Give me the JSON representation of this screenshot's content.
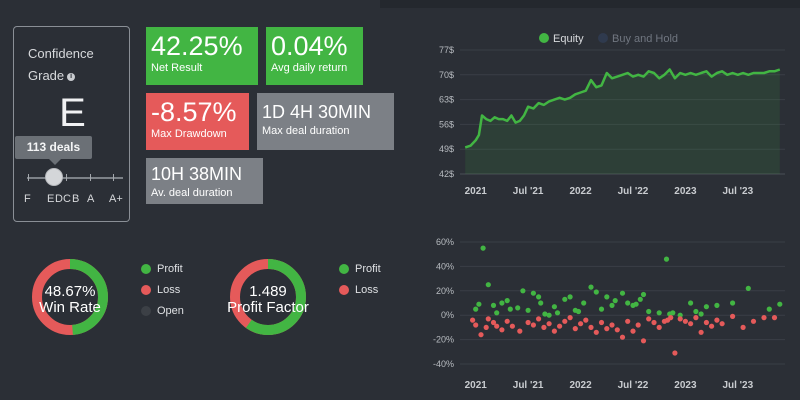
{
  "confidence": {
    "title": "Confidence Grade",
    "info_icon": "info-icon",
    "grade": "E",
    "tooltip": "113 deals",
    "scale": [
      "F",
      "E",
      "D",
      "C",
      "B",
      "A",
      "A+"
    ],
    "level": "E"
  },
  "tiles": {
    "net_result": {
      "value": "42.25%",
      "label": "Net Result"
    },
    "avg_daily_return": {
      "value": "0.04%",
      "label": "Avg daily return"
    },
    "max_drawdown": {
      "value": "-8.57%",
      "label": "Max Drawdown"
    },
    "max_deal_duration": {
      "value": "1D 4H 30MIN",
      "label": "Max deal duration"
    },
    "avg_deal_duration": {
      "value": "10H 38MIN",
      "label": "Av. deal duration"
    }
  },
  "win_rate": {
    "value": "48.67%",
    "label": "Win Rate",
    "profit_fraction": 0.4867,
    "legend": [
      "Profit",
      "Loss",
      "Open"
    ]
  },
  "profit_factor": {
    "value": "1.489",
    "label": "Profit Factor",
    "profit_fraction": 0.598,
    "legend": [
      "Profit",
      "Loss"
    ]
  },
  "colors": {
    "profit": "#42b543",
    "loss": "#e55a5a",
    "open": "#3c4046",
    "neutral": "#7c8086",
    "buy_and_hold": "#4a5d80"
  },
  "chart_data": [
    {
      "type": "line",
      "legend": [
        "Equity",
        "Buy and Hold"
      ],
      "y_ticks": [
        "42$",
        "49$",
        "56$",
        "63$",
        "70$",
        "77$"
      ],
      "x_ticks": [
        "2021",
        "Jul '21",
        "2022",
        "Jul '22",
        "2023",
        "Jul '23"
      ],
      "ylim": [
        42,
        77
      ],
      "xlim": [
        2020.85,
        2023.95
      ],
      "series": [
        {
          "name": "Equity",
          "x": [
            2020.9,
            2020.95,
            2021.0,
            2021.03,
            2021.06,
            2021.1,
            2021.14,
            2021.18,
            2021.22,
            2021.26,
            2021.3,
            2021.34,
            2021.38,
            2021.42,
            2021.46,
            2021.5,
            2021.55,
            2021.6,
            2021.65,
            2021.7,
            2021.75,
            2021.8,
            2021.85,
            2021.9,
            2021.95,
            2022.0,
            2022.05,
            2022.1,
            2022.15,
            2022.2,
            2022.25,
            2022.3,
            2022.35,
            2022.4,
            2022.45,
            2022.5,
            2022.55,
            2022.6,
            2022.65,
            2022.7,
            2022.75,
            2022.8,
            2022.85,
            2022.9,
            2022.95,
            2023.0,
            2023.05,
            2023.1,
            2023.15,
            2023.2,
            2023.25,
            2023.3,
            2023.35,
            2023.4,
            2023.45,
            2023.5,
            2023.55,
            2023.6,
            2023.65,
            2023.7,
            2023.75,
            2023.8,
            2023.85,
            2023.9
          ],
          "values": [
            49.5,
            50.0,
            51.5,
            53.0,
            58.5,
            57.5,
            57.0,
            58.0,
            57.5,
            57.5,
            57.0,
            58.5,
            56.5,
            57.0,
            58.5,
            61.0,
            60.5,
            62.0,
            61.5,
            62.5,
            63.0,
            63.5,
            63.0,
            63.5,
            64.5,
            65.0,
            65.5,
            68.5,
            66.5,
            67.0,
            70.5,
            69.0,
            69.5,
            70.0,
            70.5,
            69.5,
            70.0,
            69.5,
            71.0,
            70.5,
            69.0,
            70.0,
            71.5,
            69.0,
            70.5,
            70.0,
            70.5,
            70.0,
            70.5,
            71.0,
            69.5,
            70.5,
            71.0,
            70.0,
            70.5,
            70.0,
            70.5,
            70.0,
            70.5,
            70.5,
            70.5,
            71.0,
            71.0,
            71.5
          ]
        }
      ]
    },
    {
      "type": "scatter",
      "y_ticks": [
        "60%",
        "40%",
        "20%",
        "0%",
        "-20%",
        "-40%"
      ],
      "x_ticks": [
        "2021",
        "Jul '21",
        "2022",
        "Jul '22",
        "2023",
        "Jul '23"
      ],
      "ylim": [
        -40,
        60
      ],
      "xlim": [
        2020.85,
        2023.95
      ],
      "series": [
        {
          "name": "Profit",
          "x": [
            2021.0,
            2021.03,
            2021.07,
            2021.12,
            2021.17,
            2021.2,
            2021.25,
            2021.3,
            2021.33,
            2021.4,
            2021.45,
            2021.5,
            2021.55,
            2021.6,
            2021.62,
            2021.66,
            2021.7,
            2021.75,
            2021.78,
            2021.85,
            2021.9,
            2021.95,
            2021.98,
            2022.03,
            2022.1,
            2022.15,
            2022.2,
            2022.25,
            2022.3,
            2022.33,
            2022.4,
            2022.45,
            2022.5,
            2022.53,
            2022.57,
            2022.6,
            2022.65,
            2022.75,
            2022.82,
            2022.85,
            2022.88,
            2022.95,
            2023.05,
            2023.1,
            2023.15,
            2023.2,
            2023.3,
            2023.45,
            2023.6,
            2023.8,
            2023.9
          ],
          "values": [
            5,
            9,
            55,
            25,
            8,
            2,
            10,
            12,
            5,
            6,
            20,
            4,
            18,
            15,
            10,
            1,
            0,
            7,
            2,
            13,
            15,
            4,
            3,
            10,
            23,
            19,
            5,
            15,
            8,
            12,
            18,
            10,
            8,
            9,
            13,
            17,
            3,
            2,
            46,
            1,
            2,
            0,
            10,
            3,
            1,
            7,
            8,
            10,
            22,
            5,
            9
          ]
        },
        {
          "name": "Loss",
          "x": [
            2020.97,
            2021.0,
            2021.05,
            2021.1,
            2021.12,
            2021.17,
            2021.2,
            2021.25,
            2021.3,
            2021.35,
            2021.42,
            2021.5,
            2021.55,
            2021.6,
            2021.65,
            2021.7,
            2021.75,
            2021.8,
            2021.85,
            2021.9,
            2021.95,
            2022.0,
            2022.05,
            2022.1,
            2022.15,
            2022.2,
            2022.25,
            2022.3,
            2022.35,
            2022.4,
            2022.45,
            2022.5,
            2022.55,
            2022.6,
            2022.65,
            2022.7,
            2022.75,
            2022.8,
            2022.83,
            2022.86,
            2022.9,
            2022.95,
            2023.0,
            2023.05,
            2023.1,
            2023.15,
            2023.2,
            2023.25,
            2023.3,
            2023.35,
            2023.45,
            2023.55,
            2023.65,
            2023.75,
            2023.85
          ],
          "values": [
            -4,
            -8,
            -16,
            -10,
            -3,
            -6,
            -9,
            -12,
            -5,
            -9,
            -13,
            -6,
            -8,
            -3,
            -10,
            -7,
            -13,
            -9,
            -5,
            -2,
            -11,
            -7,
            -4,
            -10,
            -14,
            -6,
            -11,
            -8,
            -12,
            -18,
            -5,
            -13,
            -8,
            -21,
            -3,
            -6,
            -10,
            -5,
            -4,
            -2,
            -31,
            -3,
            -5,
            -7,
            -2,
            -14,
            -6,
            -9,
            -4,
            -7,
            -1,
            -10,
            -5,
            -2,
            -2
          ]
        }
      ]
    }
  ]
}
